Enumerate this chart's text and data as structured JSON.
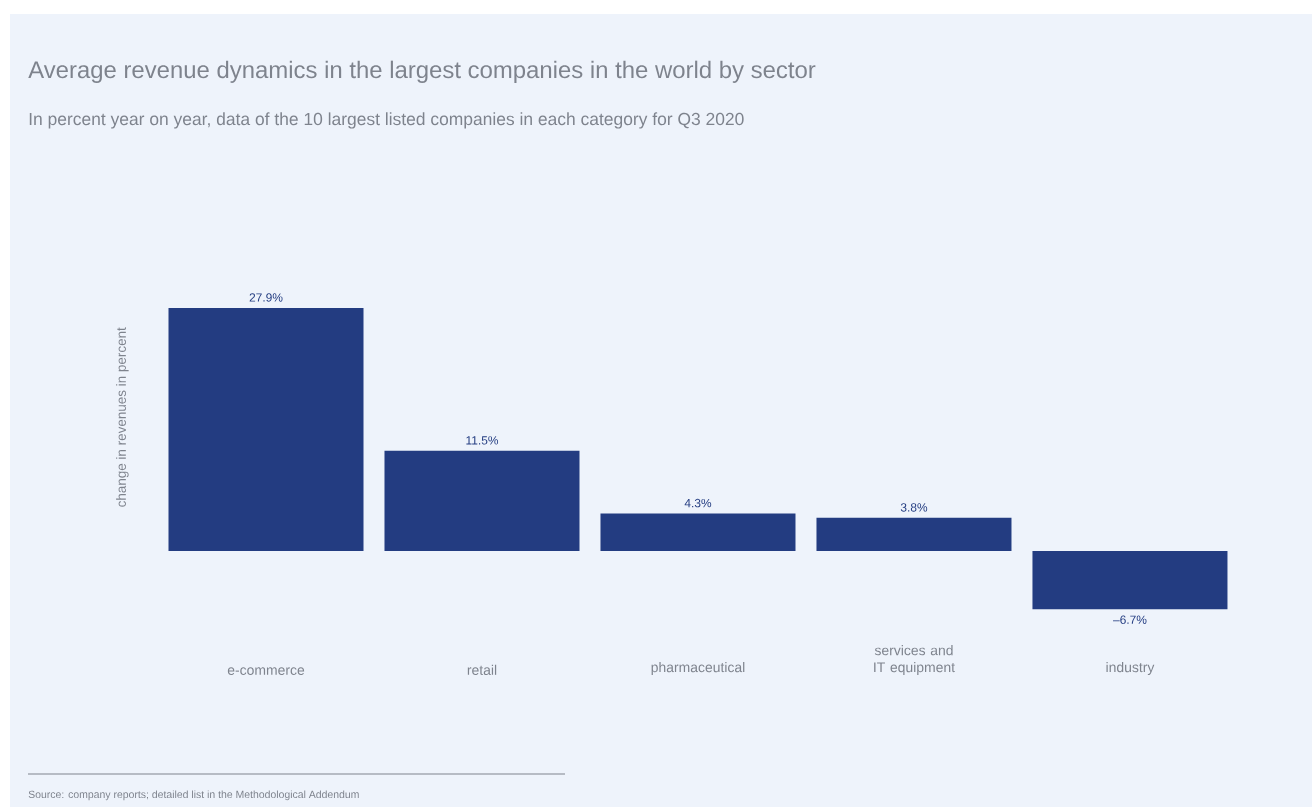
{
  "chart_data": {
    "type": "bar",
    "title": "Average revenue dynamics in the largest companies in the world by sector",
    "subtitle": "In percent year on year, data of the 10 largest listed companies in each category for Q3 2020",
    "ylabel": "change in revenues in percent",
    "categories": [
      "e-commerce",
      "retail",
      "pharmaceutical",
      "services and IT equipment",
      "industry"
    ],
    "values": [
      27.9,
      11.5,
      4.3,
      3.8,
      -6.7
    ],
    "value_labels": [
      "27.9%",
      "11.5%",
      "4.3%",
      "3.8%",
      "–6.7%"
    ],
    "color": "#233c81",
    "annotations": [
      "Source: company reports; detailed list in the Methodological Addendum"
    ]
  }
}
